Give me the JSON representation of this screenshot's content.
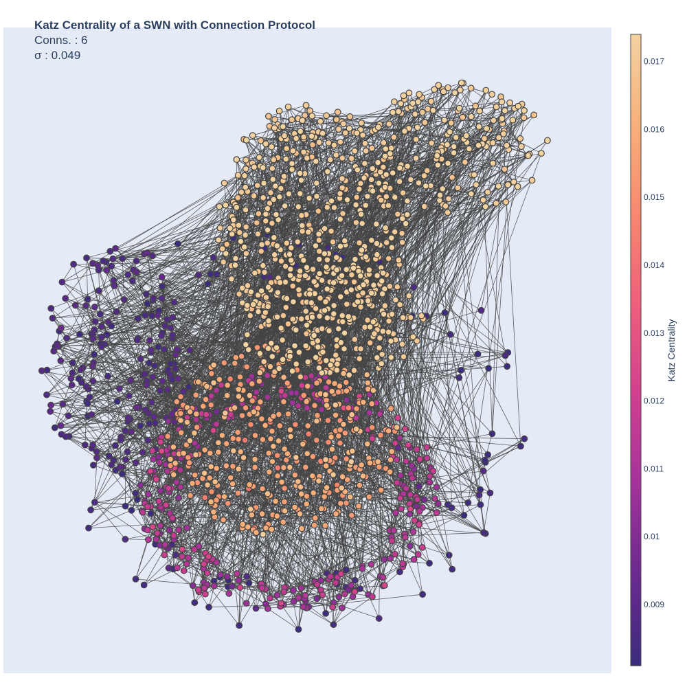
{
  "title": "Katz Centrality of a SWN with Connection Protocol",
  "subtitle_lines": [
    "Conns. : 6",
    "σ : 0.049"
  ],
  "colorbar": {
    "title": "Katz Centrality",
    "tick_labels": [
      "0.017",
      "0.016",
      "0.015",
      "0.014",
      "0.013",
      "0.012",
      "0.011",
      "0.01",
      "0.009"
    ],
    "tick_values": [
      0.017,
      0.016,
      0.015,
      0.014,
      0.013,
      0.012,
      0.011,
      0.01,
      0.009
    ],
    "range": [
      0.0081,
      0.0174
    ],
    "colorscale": [
      "#3b2c7f",
      "#6a2a8f",
      "#a3329b",
      "#d13f8f",
      "#ef5e7c",
      "#f8886e",
      "#f9b07a",
      "#f3d3a1"
    ]
  },
  "colors": {
    "plot_background": "#e5ebf6",
    "edge": "#444444",
    "node_outline": "#444444",
    "text": "#2a3f5f"
  },
  "chart_data": {
    "type": "network",
    "title": "Katz Centrality of a SWN with Connection Protocol",
    "connections_per_node": 6,
    "sigma": 0.049,
    "node_value_field": "Katz Centrality",
    "value_range": [
      0.0081,
      0.0174
    ],
    "grid": false,
    "axes_visible": false,
    "regions": [
      {
        "name": "upper-right lobe",
        "katz_centrality": 0.0173
      },
      {
        "name": "upper core",
        "katz_centrality": 0.0172
      },
      {
        "name": "lower-center core",
        "katz_centrality": 0.0158
      },
      {
        "name": "lower ring",
        "katz_centrality": 0.0112
      },
      {
        "name": "left fringe",
        "katz_centrality": 0.0088
      },
      {
        "name": "outer periphery",
        "katz_centrality": 0.0083
      }
    ]
  }
}
